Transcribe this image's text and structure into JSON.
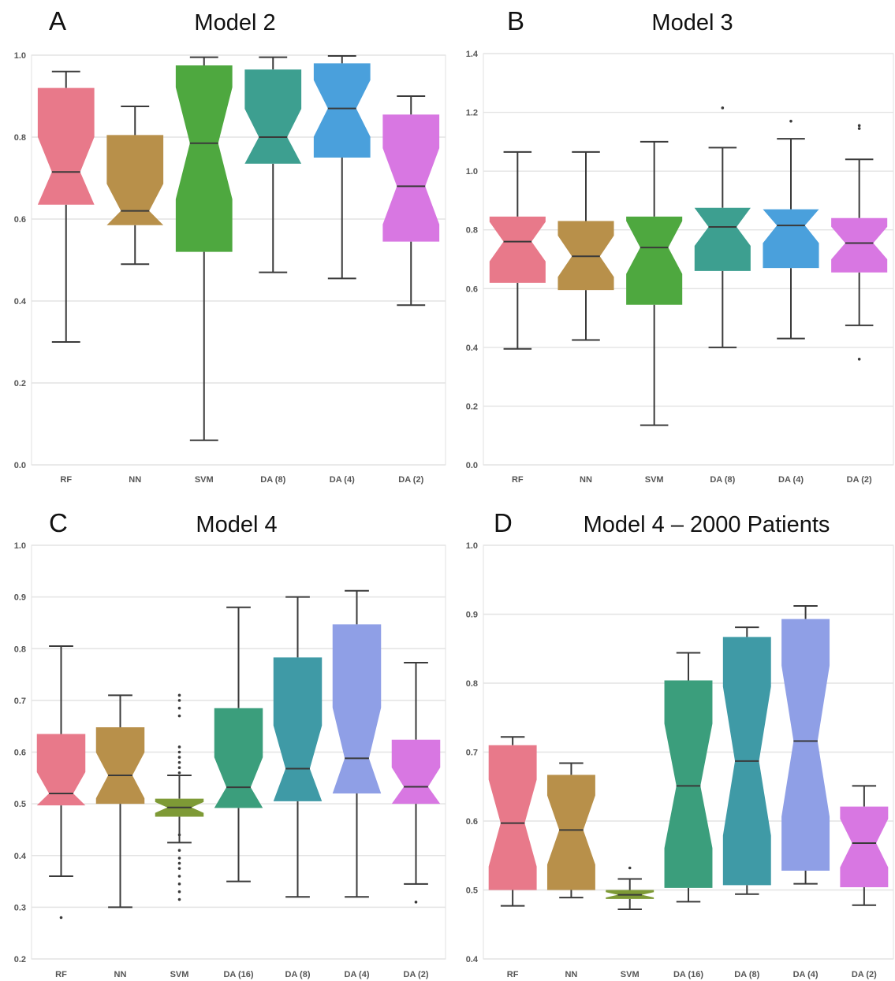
{
  "chart_data": [
    {
      "type": "boxplot",
      "panel_letter": "A",
      "title": "Model 2",
      "ylim": [
        0.0,
        1.0
      ],
      "yticks": [
        "0.0",
        "0.2",
        "0.4",
        "0.6",
        "0.8",
        "1.0"
      ],
      "categories": [
        "RF",
        "NN",
        "SVM",
        "DA (8)",
        "DA (4)",
        "DA (2)"
      ],
      "grid": true,
      "series": [
        {
          "category": "RF",
          "color": "#e8798a",
          "whislo": 0.3,
          "q1": 0.635,
          "med": 0.715,
          "q3": 0.92,
          "whishi": 0.96,
          "fliers": []
        },
        {
          "category": "NN",
          "color": "#b8904a",
          "whislo": 0.49,
          "q1": 0.585,
          "med": 0.62,
          "q3": 0.805,
          "whishi": 0.875,
          "fliers": []
        },
        {
          "category": "SVM",
          "color": "#4ea83f",
          "whislo": 0.06,
          "q1": 0.52,
          "med": 0.785,
          "q3": 0.975,
          "whishi": 0.995,
          "fliers": []
        },
        {
          "category": "DA (8)",
          "color": "#3d9f90",
          "whislo": 0.47,
          "q1": 0.735,
          "med": 0.8,
          "q3": 0.965,
          "whishi": 0.995,
          "fliers": []
        },
        {
          "category": "DA (4)",
          "color": "#4aa0dc",
          "whislo": 0.455,
          "q1": 0.75,
          "med": 0.87,
          "q3": 0.98,
          "whishi": 0.998,
          "fliers": []
        },
        {
          "category": "DA (2)",
          "color": "#d877e2",
          "whislo": 0.39,
          "q1": 0.545,
          "med": 0.68,
          "q3": 0.855,
          "whishi": 0.9,
          "fliers": []
        }
      ]
    },
    {
      "type": "boxplot",
      "panel_letter": "B",
      "title": "Model 3",
      "ylim": [
        0.0,
        1.4
      ],
      "yticks": [
        "0.0",
        "0.2",
        "0.4",
        "0.6",
        "0.8",
        "1.0",
        "1.2",
        "1.4"
      ],
      "categories": [
        "RF",
        "NN",
        "SVM",
        "DA (8)",
        "DA (4)",
        "DA (2)"
      ],
      "grid": true,
      "series": [
        {
          "category": "RF",
          "color": "#e8798a",
          "whislo": 0.395,
          "q1": 0.62,
          "med": 0.76,
          "q3": 0.845,
          "whishi": 1.065,
          "fliers": []
        },
        {
          "category": "NN",
          "color": "#b8904a",
          "whislo": 0.425,
          "q1": 0.595,
          "med": 0.71,
          "q3": 0.83,
          "whishi": 1.065,
          "fliers": []
        },
        {
          "category": "SVM",
          "color": "#4ea83f",
          "whislo": 0.135,
          "q1": 0.545,
          "med": 0.74,
          "q3": 0.845,
          "whishi": 1.1,
          "fliers": []
        },
        {
          "category": "DA (8)",
          "color": "#3d9f90",
          "whislo": 0.4,
          "q1": 0.66,
          "med": 0.81,
          "q3": 0.875,
          "whishi": 1.08,
          "fliers": [
            1.215
          ]
        },
        {
          "category": "DA (4)",
          "color": "#4aa0dc",
          "whislo": 0.43,
          "q1": 0.67,
          "med": 0.815,
          "q3": 0.87,
          "whishi": 1.11,
          "fliers": [
            1.17
          ]
        },
        {
          "category": "DA (2)",
          "color": "#d877e2",
          "whislo": 0.475,
          "q1": 0.655,
          "med": 0.755,
          "q3": 0.84,
          "whishi": 1.04,
          "fliers": [
            0.36,
            1.145,
            1.155
          ]
        }
      ]
    },
    {
      "type": "boxplot",
      "panel_letter": "C",
      "title": "Model 4",
      "ylim": [
        0.2,
        1.0
      ],
      "yticks": [
        "0.2",
        "0.3",
        "0.4",
        "0.5",
        "0.6",
        "0.7",
        "0.8",
        "0.9",
        "1.0"
      ],
      "categories": [
        "RF",
        "NN",
        "SVM",
        "DA (16)",
        "DA (8)",
        "DA (4)",
        "DA (2)"
      ],
      "grid": true,
      "series": [
        {
          "category": "RF",
          "color": "#e8798a",
          "whislo": 0.36,
          "q1": 0.497,
          "med": 0.52,
          "q3": 0.635,
          "whishi": 0.805,
          "fliers": [
            0.28
          ]
        },
        {
          "category": "NN",
          "color": "#b8904a",
          "whislo": 0.3,
          "q1": 0.5,
          "med": 0.555,
          "q3": 0.648,
          "whishi": 0.71,
          "fliers": []
        },
        {
          "category": "SVM",
          "color": "#7e9a36",
          "whislo": 0.425,
          "q1": 0.475,
          "med": 0.493,
          "q3": 0.51,
          "whishi": 0.555,
          "fliers": [
            0.315,
            0.33,
            0.345,
            0.36,
            0.375,
            0.385,
            0.395,
            0.41,
            0.44,
            0.56,
            0.57,
            0.58,
            0.59,
            0.6,
            0.61,
            0.67,
            0.685,
            0.7,
            0.71
          ]
        },
        {
          "category": "DA (16)",
          "color": "#3b9e7c",
          "whislo": 0.35,
          "q1": 0.492,
          "med": 0.532,
          "q3": 0.685,
          "whishi": 0.88,
          "fliers": []
        },
        {
          "category": "DA (8)",
          "color": "#3f9aa6",
          "whislo": 0.32,
          "q1": 0.505,
          "med": 0.568,
          "q3": 0.783,
          "whishi": 0.9,
          "fliers": []
        },
        {
          "category": "DA (4)",
          "color": "#8f9fe6",
          "whislo": 0.32,
          "q1": 0.52,
          "med": 0.588,
          "q3": 0.847,
          "whishi": 0.912,
          "fliers": []
        },
        {
          "category": "DA (2)",
          "color": "#d877e2",
          "whislo": 0.345,
          "q1": 0.5,
          "med": 0.533,
          "q3": 0.624,
          "whishi": 0.773,
          "fliers": [
            0.31
          ]
        }
      ]
    },
    {
      "type": "boxplot",
      "panel_letter": "D",
      "title": "Model 4 – 2000 Patients",
      "ylim": [
        0.4,
        1.0
      ],
      "yticks": [
        "0.4",
        "0.5",
        "0.6",
        "0.7",
        "0.8",
        "0.9",
        "1.0"
      ],
      "categories": [
        "RF",
        "NN",
        "SVM",
        "DA (16)",
        "DA (8)",
        "DA (4)",
        "DA (2)"
      ],
      "grid": true,
      "series": [
        {
          "category": "RF",
          "color": "#e8798a",
          "whislo": 0.477,
          "q1": 0.5,
          "med": 0.597,
          "q3": 0.71,
          "whishi": 0.722,
          "fliers": []
        },
        {
          "category": "NN",
          "color": "#b8904a",
          "whislo": 0.489,
          "q1": 0.5,
          "med": 0.587,
          "q3": 0.667,
          "whishi": 0.684,
          "fliers": []
        },
        {
          "category": "SVM",
          "color": "#7e9a36",
          "whislo": 0.472,
          "q1": 0.487,
          "med": 0.493,
          "q3": 0.5,
          "whishi": 0.516,
          "fliers": [
            0.532
          ]
        },
        {
          "category": "DA (16)",
          "color": "#3b9e7c",
          "whislo": 0.483,
          "q1": 0.503,
          "med": 0.651,
          "q3": 0.804,
          "whishi": 0.844,
          "fliers": []
        },
        {
          "category": "DA (8)",
          "color": "#3f9aa6",
          "whislo": 0.494,
          "q1": 0.507,
          "med": 0.687,
          "q3": 0.867,
          "whishi": 0.881,
          "fliers": []
        },
        {
          "category": "DA (4)",
          "color": "#8f9fe6",
          "whislo": 0.509,
          "q1": 0.528,
          "med": 0.716,
          "q3": 0.893,
          "whishi": 0.912,
          "fliers": []
        },
        {
          "category": "DA (2)",
          "color": "#d877e2",
          "whislo": 0.478,
          "q1": 0.504,
          "med": 0.568,
          "q3": 0.621,
          "whishi": 0.651,
          "fliers": []
        }
      ]
    }
  ]
}
